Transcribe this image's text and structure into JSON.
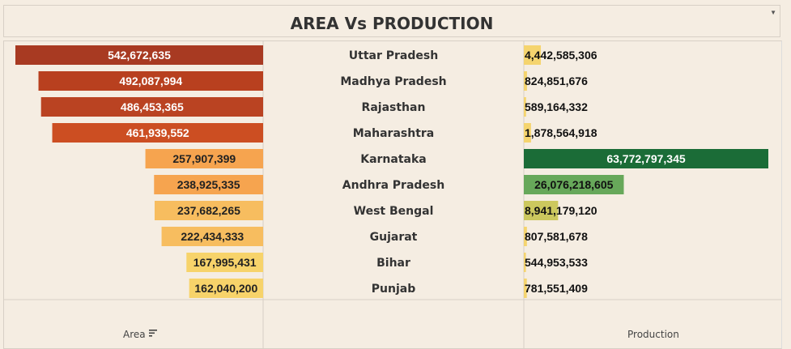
{
  "title": "AREA Vs PRODUCTION",
  "axis_titles": {
    "left": "Area",
    "right": "Production"
  },
  "chart_data": {
    "type": "bar",
    "title": "AREA Vs PRODUCTION",
    "categories": [
      "Uttar Pradesh",
      "Madhya Pradesh",
      "Rajasthan",
      "Maharashtra",
      "Karnataka",
      "Andhra Pradesh",
      "West Bengal",
      "Gujarat",
      "Bihar",
      "Punjab"
    ],
    "series": [
      {
        "name": "Area",
        "values": [
          542672635,
          492087994,
          486453365,
          461939552,
          257907399,
          238925335,
          237682265,
          222434333,
          167995431,
          162040200
        ],
        "labels": [
          "542,672,635",
          "492,087,994",
          "486,453,365",
          "461,939,552",
          "257,907,399",
          "238,925,335",
          "237,682,265",
          "222,434,333",
          "167,995,431",
          "162,040,200"
        ],
        "colors": [
          "#a83a22",
          "#b8401f",
          "#ba4322",
          "#cc4e22",
          "#f6a44f",
          "#f6a44f",
          "#f7bd5f",
          "#f7bd5f",
          "#f7d36a",
          "#f7d36a"
        ],
        "text_colors": [
          "#ffffff",
          "#ffffff",
          "#ffffff",
          "#ffffff",
          "#222222",
          "#222222",
          "#222222",
          "#222222",
          "#222222",
          "#222222"
        ]
      },
      {
        "name": "Production",
        "values": [
          4442585306,
          824851676,
          589164332,
          1878564918,
          63772797345,
          26076218605,
          8941179120,
          807581678,
          544953533,
          781551409
        ],
        "labels": [
          "4,442,585,306",
          "824,851,676",
          "589,164,332",
          "1,878,564,918",
          "63,772,797,345",
          "26,076,218,605",
          "8,941,179,120",
          "807,581,678",
          "544,953,533",
          "781,551,409"
        ],
        "colors": [
          "#f5d46e",
          "#f5d46e",
          "#f5d46e",
          "#f5d46e",
          "#1b6c37",
          "#67a85a",
          "#ccc85e",
          "#f5d46e",
          "#f5d46e",
          "#f5d46e"
        ],
        "text_colors": [
          "#111111",
          "#111111",
          "#111111",
          "#111111",
          "#ffffff",
          "#111111",
          "#111111",
          "#111111",
          "#111111",
          "#111111"
        ]
      }
    ],
    "grid": false
  }
}
